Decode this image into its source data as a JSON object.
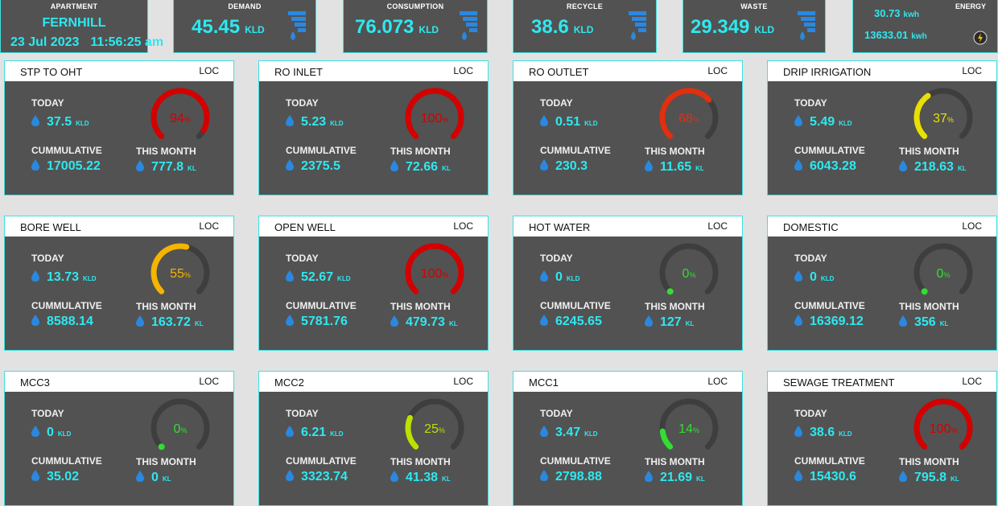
{
  "header": {
    "apartment": {
      "label": "APARTMENT",
      "name": "FERNHILL",
      "date": "23 Jul 2023",
      "time": "11:56:25 am"
    },
    "demand": {
      "label": "DEMAND",
      "value": "45.45",
      "unit": "KLD"
    },
    "consumption": {
      "label": "CONSUMPTION",
      "value": "76.073",
      "unit": "KLD"
    },
    "recycle": {
      "label": "RECYCLE",
      "value": "38.6",
      "unit": "KLD"
    },
    "waste": {
      "label": "WASTE",
      "value": "29.349",
      "unit": "KLD"
    },
    "energy": {
      "label": "ENERGY",
      "value1": "30.73",
      "unit1": "kwh",
      "value2": "13633.01",
      "unit2": "kwh"
    }
  },
  "labels": {
    "today": "TODAY",
    "cumulative": "CUMMULATIVE",
    "month": "THIS MONTH",
    "loc": "LOC",
    "kld": "KLD",
    "kl": "KL",
    "pct": "%"
  },
  "colors": {
    "accent": "#2ee8f0",
    "card_bg": "#525252",
    "track": "#3e3e3e",
    "red": "#d40000",
    "orange_red": "#e03010",
    "yellow": "#e8e000",
    "amber": "#f5b400",
    "lime": "#bde000",
    "green": "#33dd33"
  },
  "cards": [
    {
      "title": "STP TO OHT",
      "today": "37.5",
      "cumulative": "17005.22",
      "month": "777.8",
      "percent": 94,
      "pct_text": "94",
      "color": "#d40000"
    },
    {
      "title": "RO INLET",
      "today": "5.23",
      "cumulative": "2375.5",
      "month": "72.66",
      "percent": 100,
      "pct_text": "100",
      "color": "#d40000"
    },
    {
      "title": "RO OUTLET",
      "today": "0.51",
      "cumulative": "230.3",
      "month": "11.65",
      "percent": 68,
      "pct_text": "68",
      "color": "#e03010"
    },
    {
      "title": "DRIP IRRIGATION",
      "today": "5.49",
      "cumulative": "6043.28",
      "month": "218.63",
      "percent": 37,
      "pct_text": "37",
      "color": "#e8e000"
    },
    {
      "title": "BORE WELL",
      "today": "13.73",
      "cumulative": "8588.14",
      "month": "163.72",
      "percent": 55,
      "pct_text": "55",
      "color": "#f5b400"
    },
    {
      "title": "OPEN WELL",
      "today": "52.67",
      "cumulative": "5781.76",
      "month": "479.73",
      "percent": 100,
      "pct_text": "100",
      "color": "#d40000"
    },
    {
      "title": "HOT WATER",
      "today": "0",
      "cumulative": "6245.65",
      "month": "127",
      "percent": 0,
      "pct_text": "0",
      "color": "#33dd33"
    },
    {
      "title": "DOMESTIC",
      "today": "0",
      "cumulative": "16369.12",
      "month": "356",
      "percent": 0,
      "pct_text": "0",
      "color": "#33dd33"
    },
    {
      "title": "MCC3",
      "today": "0",
      "cumulative": "35.02",
      "month": "0",
      "percent": 0,
      "pct_text": "0",
      "color": "#33dd33"
    },
    {
      "title": "MCC2",
      "today": "6.21",
      "cumulative": "3323.74",
      "month": "41.38",
      "percent": 25,
      "pct_text": "25",
      "color": "#bde000"
    },
    {
      "title": "MCC1",
      "today": "3.47",
      "cumulative": "2798.88",
      "month": "21.69",
      "percent": 14,
      "pct_text": "14",
      "color": "#33dd33"
    },
    {
      "title": "SEWAGE TREATMENT",
      "today": "38.6",
      "cumulative": "15430.6",
      "month": "795.8",
      "percent": 100,
      "pct_text": "100",
      "color": "#d40000"
    }
  ]
}
